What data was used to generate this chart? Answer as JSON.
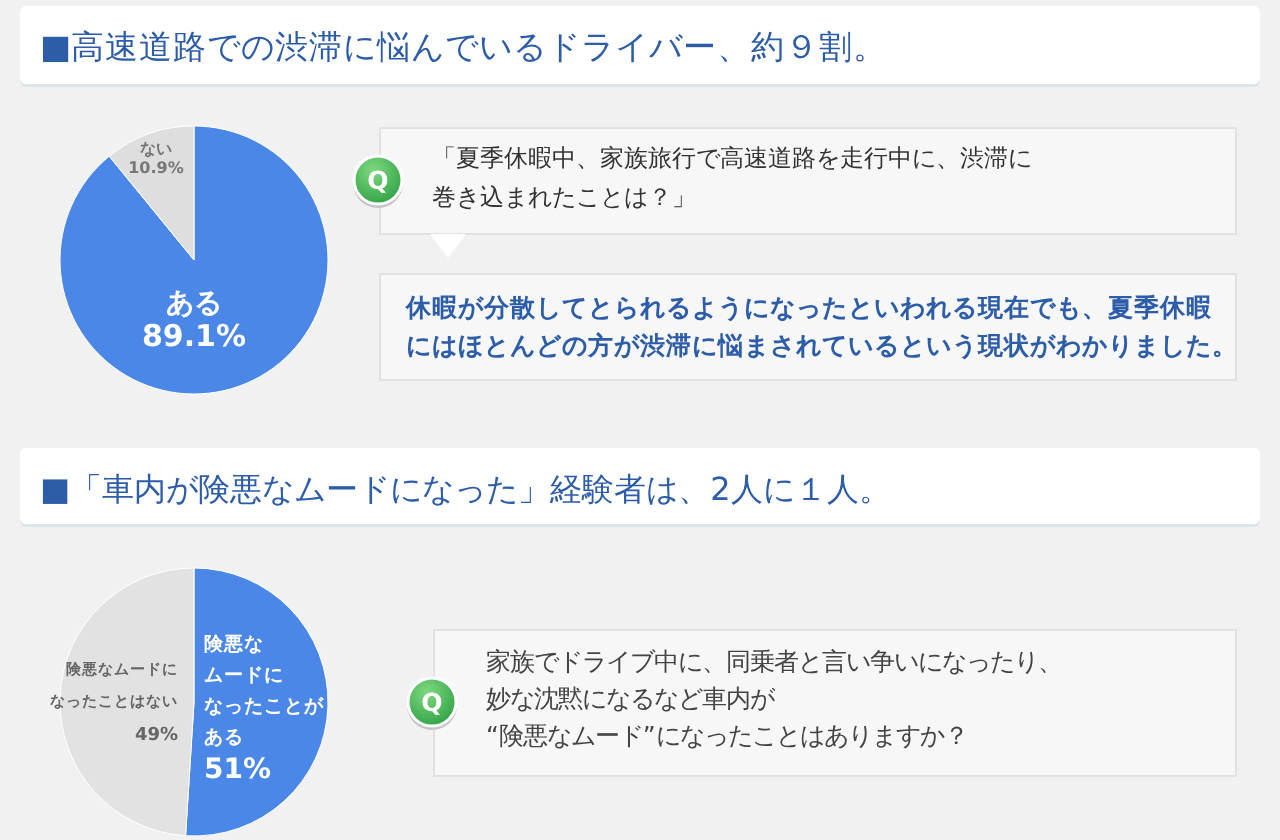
{
  "chart_data": [
    {
      "type": "pie",
      "title": "■高速道路での渋滞に悩んでいるドライバー、約９割。",
      "categories": [
        "ある",
        "ない"
      ],
      "values": [
        89.1,
        10.9
      ],
      "colors": [
        "#4a87e6",
        "#dedede"
      ],
      "value_labels": [
        "89.1%",
        "10.9%"
      ],
      "annotations": [
        "Q",
        "「夏季休暇中、家族旅行で高速道路を走行中に、渋滞に巻き込まれたことは？」",
        "休暇が分散してとられるようになったといわれる現在でも、夏季休暇にはほとんどの方が渋滞に悩まされているという現状がわかりました。"
      ]
    },
    {
      "type": "pie",
      "title": "■「車内が険悪なムードになった」経験者は、2人に１人。",
      "categories": [
        "険悪なムードになったことがある",
        "険悪なムードになったことはない"
      ],
      "values": [
        51,
        49
      ],
      "colors": [
        "#4a87e6",
        "#e2e2e2"
      ],
      "value_labels": [
        "51%",
        "49%"
      ],
      "annotations": [
        "Q",
        "家族でドライブ中に、同乗者と言い争いになったり、妙な沈黙になるなど車内が“険悪なムード”になったことはありますか？"
      ]
    }
  ]
}
